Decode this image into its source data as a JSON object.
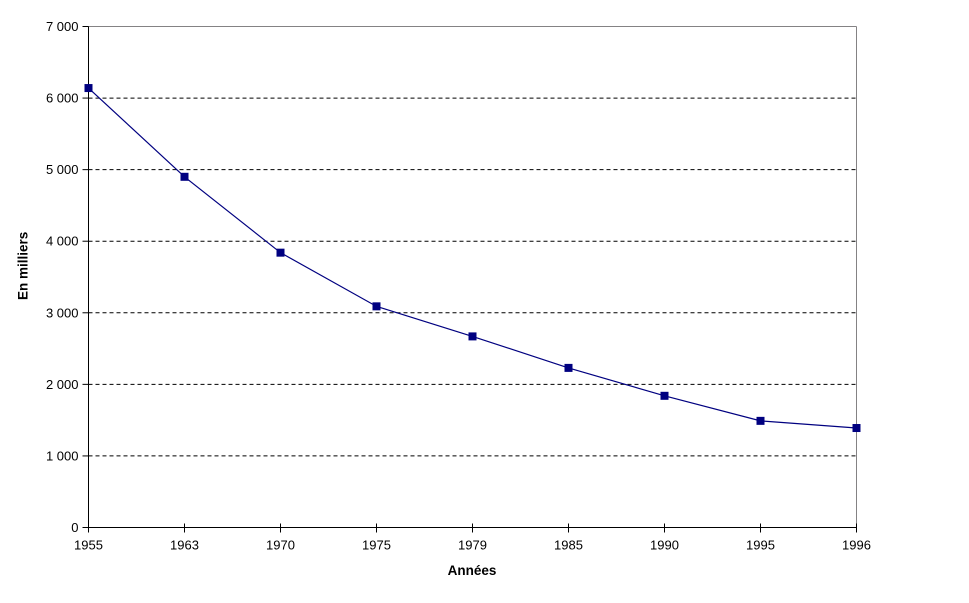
{
  "chart_data": {
    "type": "line",
    "title": "",
    "xlabel": "Années",
    "ylabel": "En milliers",
    "categories": [
      "1955",
      "1963",
      "1970",
      "1975",
      "1979",
      "1985",
      "1990",
      "1995",
      "1996"
    ],
    "series": [
      {
        "name": "",
        "values": [
          6140,
          4900,
          3840,
          3090,
          2670,
          2230,
          1840,
          1490,
          1390
        ],
        "line_color": "#000080",
        "marker": "square",
        "marker_color": "#000080"
      }
    ],
    "ylim": [
      0,
      7000
    ],
    "ytick_step": 1000,
    "ytick_labels": [
      "0",
      "1 000",
      "2 000",
      "3 000",
      "4 000",
      "5 000",
      "6 000",
      "7 000"
    ],
    "grid": "horizontal-dashed",
    "gridline_color": "#000000",
    "axis_color": "#000000",
    "plot_border_color": "#848284",
    "background_color": "#ffffff",
    "legend": "none"
  }
}
